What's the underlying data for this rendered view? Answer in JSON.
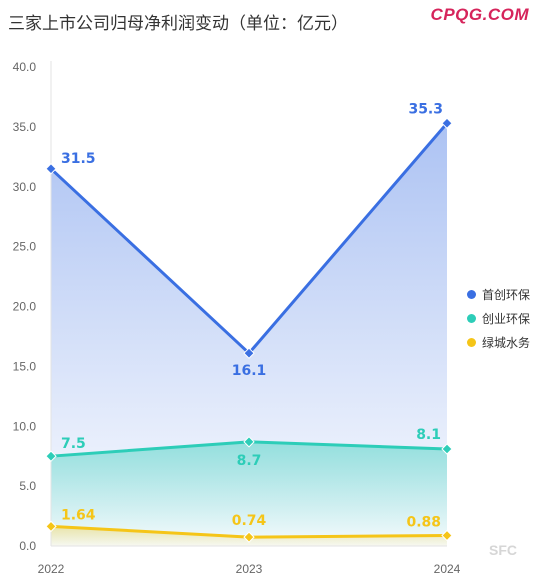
{
  "title": "三家上市公司归母净利润变动（单位：亿元）",
  "brand": "CPQG.COM",
  "watermark": "SFC",
  "chart_data": {
    "type": "line",
    "categories": [
      "2022",
      "2023",
      "2024"
    ],
    "ylim": [
      0,
      40
    ],
    "yticks": [
      "0.0",
      "5.0",
      "10.0",
      "15.0",
      "20.0",
      "25.0",
      "30.0",
      "35.0",
      "40.0"
    ],
    "legend_position": "right",
    "series": [
      {
        "name": "首创环保",
        "values": [
          31.5,
          16.1,
          35.3
        ],
        "labels": [
          "31.5",
          "16.1",
          "35.3"
        ],
        "color": "#3a6fe2"
      },
      {
        "name": "创业环保",
        "values": [
          7.5,
          8.7,
          8.1
        ],
        "labels": [
          "7.5",
          "8.7",
          "8.1"
        ],
        "color": "#2dcdb8"
      },
      {
        "name": "绿城水务",
        "values": [
          1.64,
          0.74,
          0.88
        ],
        "labels": [
          "1.64",
          "0.74",
          "0.88"
        ],
        "color": "#f5c518"
      }
    ]
  }
}
